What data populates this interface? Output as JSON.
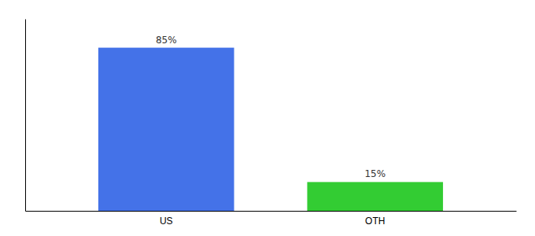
{
  "chart_data": {
    "type": "bar",
    "categories": [
      "US",
      "OTH"
    ],
    "values": [
      85,
      15
    ],
    "value_labels": [
      "85%",
      "15%"
    ],
    "colors": [
      "#4472e8",
      "#33cc33"
    ],
    "ylim": [
      0,
      100
    ],
    "yticks": [],
    "data_labels": true,
    "tick_labels": "x",
    "grid": false
  }
}
